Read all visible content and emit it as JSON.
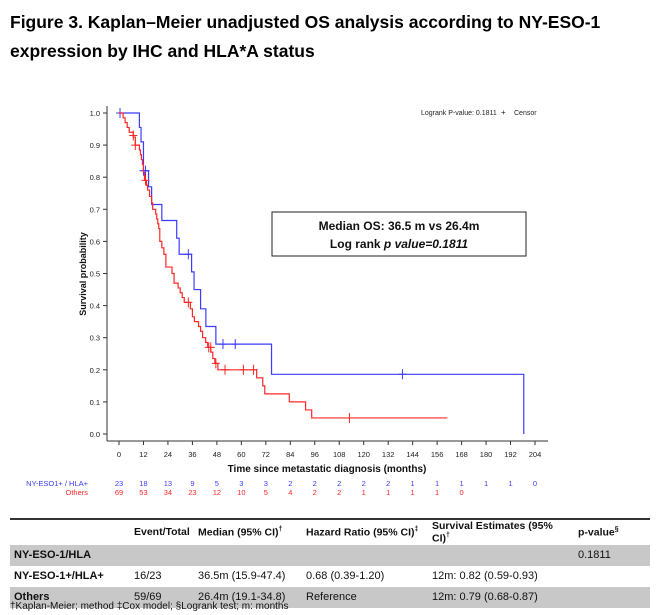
{
  "title": "Figure 3. Kaplan–Meier unadjusted OS analysis according to NY-ESO-1 expression by IHC and HLA*A status",
  "chart_data": {
    "type": "line",
    "subtype": "kaplan-meier",
    "xlabel": "Time since metastatic diagnosis (months)",
    "ylabel": "Survival probability",
    "xlim": [
      0,
      204
    ],
    "ylim": [
      0,
      1.0
    ],
    "x_ticks": [
      "0",
      "12",
      "24",
      "36",
      "48",
      "60",
      "72",
      "84",
      "96",
      "108",
      "120",
      "132",
      "144",
      "156",
      "168",
      "180",
      "192",
      "204"
    ],
    "y_ticks": [
      "0.0",
      "0.1",
      "0.2",
      "0.3",
      "0.4",
      "0.5",
      "0.6",
      "0.7",
      "0.8",
      "0.9",
      "1.0"
    ],
    "legend": {
      "pvalue_text": "Logrank P-value: 0.1811",
      "censor_symbol": "+",
      "censor_label": "Censor",
      "placement": "top-right"
    },
    "annotation": {
      "line1": "Median OS: 36.5 m vs 26.4m",
      "line2_prefix": "Log rank ",
      "line2_italic": "p value=0.1811"
    },
    "series": [
      {
        "name": "NY-ESO1+ / HLA+",
        "color": "#3b3bff",
        "steps": [
          [
            0,
            1.0
          ],
          [
            10,
            0.955
          ],
          [
            10.8,
            0.91
          ],
          [
            12,
            0.82
          ],
          [
            14.5,
            0.77
          ],
          [
            16,
            0.715
          ],
          [
            21,
            0.665
          ],
          [
            28.3,
            0.61
          ],
          [
            29.5,
            0.56
          ],
          [
            35.6,
            0.505
          ],
          [
            36.8,
            0.45
          ],
          [
            40,
            0.39
          ],
          [
            42.6,
            0.335
          ],
          [
            47.5,
            0.28
          ],
          [
            74.8,
            0.186
          ],
          [
            198.5,
            0.0
          ]
        ],
        "end": 198.5,
        "censors": [
          [
            0.5,
            1.0
          ],
          [
            12,
            0.82
          ],
          [
            13,
            0.82
          ],
          [
            34,
            0.56
          ],
          [
            51,
            0.28
          ],
          [
            57,
            0.28
          ],
          [
            139,
            0.186
          ]
        ],
        "at_risk": [
          23,
          18,
          13,
          9,
          5,
          3,
          3,
          2,
          2,
          2,
          2,
          2,
          1,
          1,
          1,
          1,
          1,
          0
        ]
      },
      {
        "name": "Others",
        "color": "#ff2626",
        "steps": [
          [
            0,
            1.0
          ],
          [
            2,
            0.985
          ],
          [
            3,
            0.97
          ],
          [
            4,
            0.955
          ],
          [
            5,
            0.94
          ],
          [
            7,
            0.925
          ],
          [
            8,
            0.9
          ],
          [
            10,
            0.885
          ],
          [
            10.5,
            0.87
          ],
          [
            11,
            0.855
          ],
          [
            11.5,
            0.84
          ],
          [
            12,
            0.815
          ],
          [
            12.5,
            0.79
          ],
          [
            13.5,
            0.775
          ],
          [
            14,
            0.76
          ],
          [
            15,
            0.74
          ],
          [
            16,
            0.72
          ],
          [
            16.5,
            0.7
          ],
          [
            18,
            0.685
          ],
          [
            18.5,
            0.67
          ],
          [
            19,
            0.655
          ],
          [
            19.5,
            0.64
          ],
          [
            20,
            0.6
          ],
          [
            21,
            0.58
          ],
          [
            22,
            0.56
          ],
          [
            23,
            0.52
          ],
          [
            26,
            0.5
          ],
          [
            27,
            0.47
          ],
          [
            29,
            0.455
          ],
          [
            30,
            0.44
          ],
          [
            31,
            0.425
          ],
          [
            32,
            0.41
          ],
          [
            35,
            0.39
          ],
          [
            36,
            0.365
          ],
          [
            37,
            0.35
          ],
          [
            39,
            0.335
          ],
          [
            40,
            0.32
          ],
          [
            41,
            0.3
          ],
          [
            42.5,
            0.285
          ],
          [
            43.5,
            0.27
          ],
          [
            45,
            0.255
          ],
          [
            46,
            0.235
          ],
          [
            47,
            0.22
          ],
          [
            48.5,
            0.2
          ],
          [
            67.5,
            0.175
          ],
          [
            70.5,
            0.15
          ],
          [
            71.5,
            0.125
          ],
          [
            83.5,
            0.1
          ],
          [
            91.5,
            0.075
          ],
          [
            94.5,
            0.05
          ]
        ],
        "end": 161,
        "censors": [
          [
            7,
            0.93
          ],
          [
            8,
            0.9
          ],
          [
            13,
            0.79
          ],
          [
            34,
            0.41
          ],
          [
            44,
            0.27
          ],
          [
            45,
            0.27
          ],
          [
            47.5,
            0.22
          ],
          [
            52,
            0.2
          ],
          [
            61,
            0.2
          ],
          [
            66,
            0.2
          ],
          [
            113,
            0.05
          ]
        ],
        "at_risk": [
          69,
          53,
          34,
          23,
          12,
          10,
          5,
          4,
          2,
          2,
          1,
          1,
          1,
          1,
          0
        ]
      }
    ]
  },
  "table": {
    "headers": [
      "",
      "Event/Total",
      "Median (95% CI)",
      "Hazard Ratio (95% CI)",
      "Survival Estimates (95% CI)",
      "p-value"
    ],
    "header_sups": [
      "",
      "",
      "†",
      "‡",
      "†",
      "§"
    ],
    "rows": [
      [
        "NY-ESO-1/HLA",
        "",
        "",
        "",
        "",
        "0.1811"
      ],
      [
        "NY-ESO-1+/HLA+",
        "16/23",
        "36.5m (15.9-47.4)",
        "0.68 (0.39-1.20)",
        "12m: 0.82 (0.59-0.93)",
        ""
      ],
      [
        "Others",
        "59/69",
        "26.4m (19.1-34.8)",
        "Reference",
        "12m: 0.79 (0.68-0.87)",
        ""
      ]
    ],
    "footnote": "†Kaplan-Meier; method ‡Cox model; §Logrank test; m: months"
  }
}
